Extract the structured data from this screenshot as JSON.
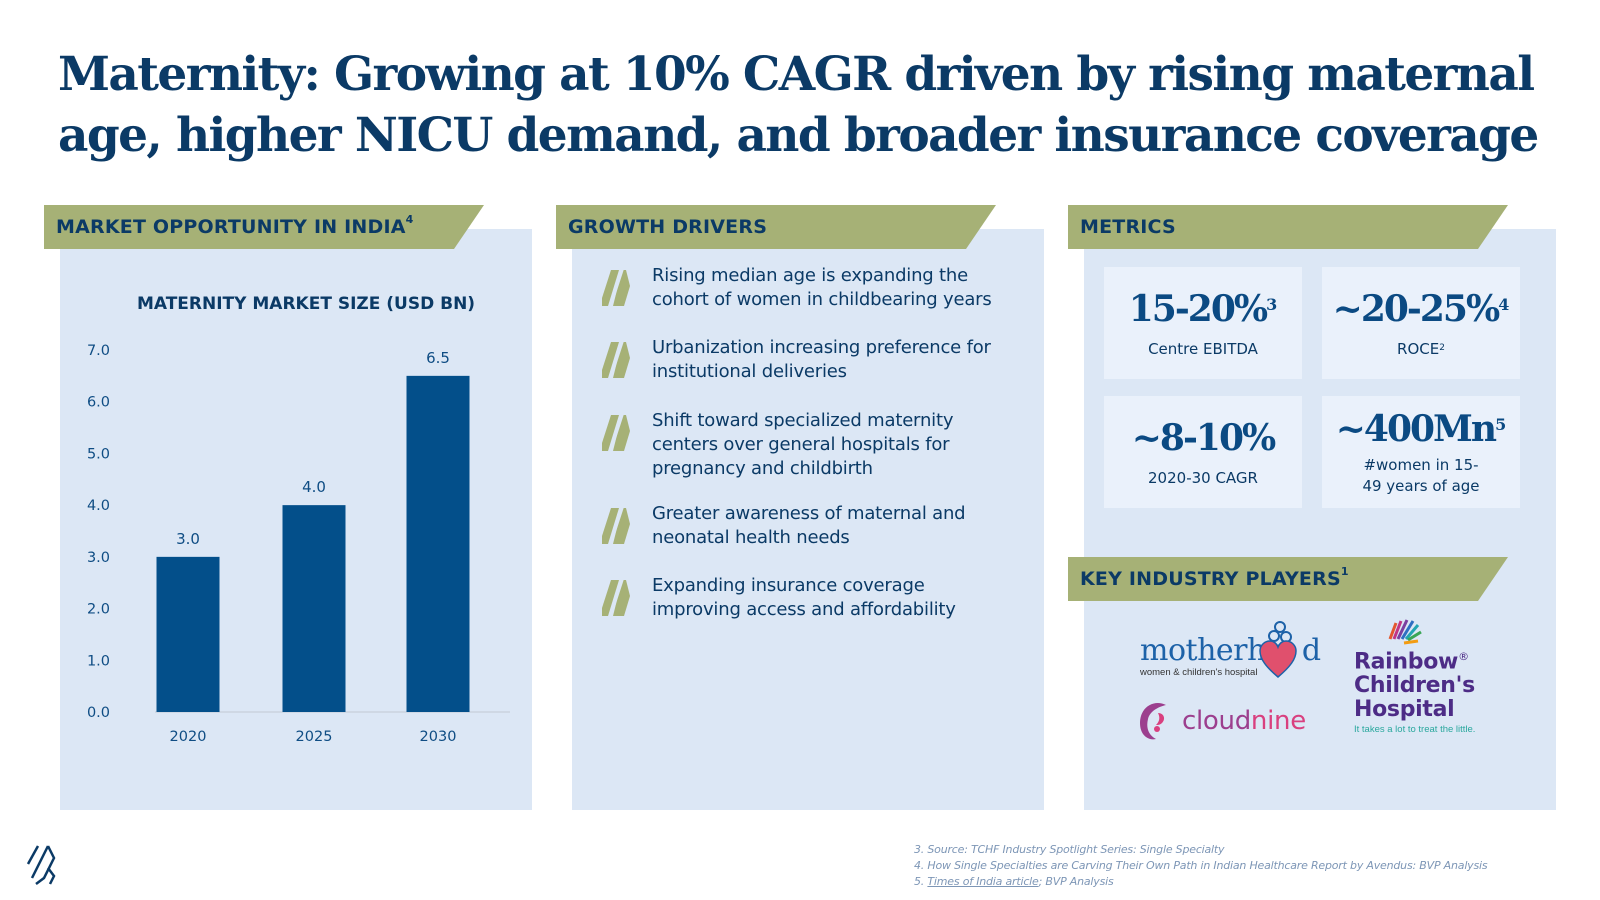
{
  "title": "Maternity: Growing at 10% CAGR driven by rising maternal age, higher NICU demand, and broader insurance coverage",
  "colors": {
    "navy": "#0b3a66",
    "bar": "#034f8a",
    "banner": "#a6b176",
    "panel": "#dce7f5",
    "metric_card": "#eaf1fb"
  },
  "market": {
    "banner_label": "MARKET OPPORTUNITY IN INDIA",
    "banner_sup": "4"
  },
  "chart_data": {
    "type": "bar",
    "title": "MATERNITY MARKET SIZE (USD BN)",
    "categories": [
      "2020",
      "2025",
      "2030"
    ],
    "values": [
      3.0,
      4.0,
      6.5
    ],
    "data_labels": [
      "3.0",
      "4.0",
      "6.5"
    ],
    "xlabel": "",
    "ylabel": "",
    "ylim": [
      0,
      7
    ],
    "yticks": [
      "0.0",
      "1.0",
      "2.0",
      "3.0",
      "4.0",
      "5.0",
      "6.0",
      "7.0"
    ],
    "grid": false,
    "legend": "none"
  },
  "drivers": {
    "banner_label": "GROWTH DRIVERS",
    "items": [
      "Rising median age is expanding the cohort of women in childbearing years",
      "Urbanization increasing preference for institutional deliveries",
      "Shift toward specialized maternity centers over general hospitals for pregnancy and childbirth",
      "Greater awareness of maternal and neonatal health needs",
      "Expanding insurance coverage improving access and affordability"
    ]
  },
  "metrics": {
    "banner_label": "METRICS",
    "items": [
      {
        "value": "15-20%",
        "sup": "3",
        "label": "Centre EBITDA",
        "label_sup": ""
      },
      {
        "value": "~20-25%",
        "sup": "4",
        "label": "ROCE",
        "label_sup": "2"
      },
      {
        "value": "~8-10%",
        "sup": "",
        "label": "2020-30 CAGR",
        "label_sup": ""
      },
      {
        "value": "~400Mn",
        "sup": "5",
        "label": "#women in 15-49 years of age",
        "label_sup": ""
      }
    ]
  },
  "players": {
    "banner_label": "KEY INDUSTRY PLAYERS",
    "banner_sup": "1",
    "logos": {
      "motherhood": {
        "word_a": "motherh",
        "word_b": "d",
        "sub": "women & children's hospital"
      },
      "cloudnine": {
        "word_a": "cloud",
        "word_b": "nine"
      },
      "rainbow": {
        "line1": "Rainbow",
        "reg": "®",
        "line2": "Children's",
        "line3": "Hospital",
        "tagline": "It takes a lot to treat the little."
      }
    }
  },
  "footnotes": {
    "f3": "3. Source: TCHF Industry Spotlight Series: Single Specialty",
    "f4": "4. How Single Specialties are Carving Their Own Path in Indian Healthcare Report by Avendus: BVP Analysis",
    "f5_prefix": "5. ",
    "f5_link": "Times of India article",
    "f5_suffix": "; BVP Analysis"
  }
}
